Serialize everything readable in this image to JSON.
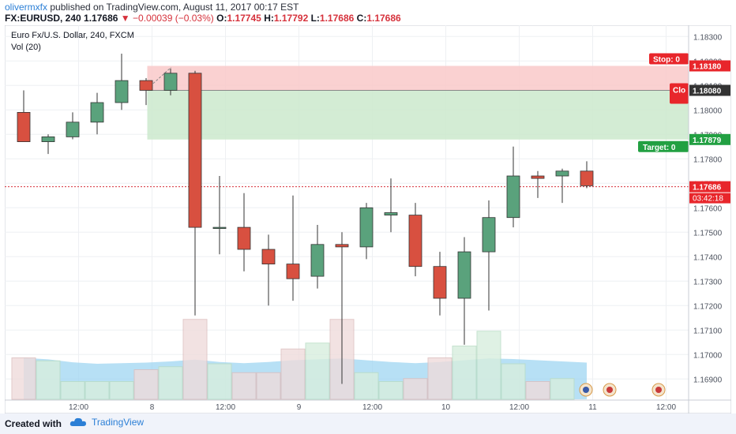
{
  "header": {
    "author": "olivermxfx",
    "published_text": " published on TradingView.com, August 11, 2017 00:17 EST",
    "symbol": "FX:EURUSD, 240",
    "last": "1.17686",
    "change": "−0.00039 (−0.03%)",
    "o_label": "O:",
    "o_val": "1.17745",
    "h_label": "H:",
    "h_val": "1.17792",
    "l_label": "L:",
    "l_val": "1.17686",
    "c_label": "C:",
    "c_val": "1.17686"
  },
  "footer": {
    "created_with": "Created with",
    "brand": "TradingView"
  },
  "colors": {
    "up": "#5aa27c",
    "down": "#d85040",
    "stop_zone": "#f9c9c9",
    "target_zone": "#cbe9cc",
    "volume_ma": "#9fd6f2",
    "price_line": "#d6323c",
    "target_label": "#22a042",
    "stop_label": "#e8262b"
  },
  "chart_data": {
    "type": "candlestick",
    "title": "Euro Fx/U.S. Dollar, 240, FXCM",
    "indicator_label": "Vol (20)",
    "ylim": [
      1.1683,
      1.1833
    ],
    "y_ticks": [
      "1.18300",
      "1.18200",
      "1.18100",
      "1.18000",
      "1.17900",
      "1.17800",
      "1.17700",
      "1.17600",
      "1.17500",
      "1.17400",
      "1.17300",
      "1.17200",
      "1.17100",
      "1.17000",
      "1.16900"
    ],
    "x_ticks": [
      {
        "label": "12:00",
        "at": 2.5
      },
      {
        "label": "8",
        "at": 5.5
      },
      {
        "label": "12:00",
        "at": 8.5
      },
      {
        "label": "9",
        "at": 11.5
      },
      {
        "label": "12:00",
        "at": 14.5
      },
      {
        "label": "10",
        "at": 17.5
      },
      {
        "label": "12:00",
        "at": 20.5
      },
      {
        "label": "11",
        "at": 23.5
      },
      {
        "label": "12:00",
        "at": 26.5
      }
    ],
    "candles": [
      {
        "o": 1.1799,
        "h": 1.1808,
        "l": 1.1787,
        "c": 1.1787
      },
      {
        "o": 1.1787,
        "h": 1.179,
        "l": 1.1782,
        "c": 1.1789
      },
      {
        "o": 1.1789,
        "h": 1.1799,
        "l": 1.1788,
        "c": 1.1795
      },
      {
        "o": 1.1795,
        "h": 1.1807,
        "l": 1.179,
        "c": 1.1803
      },
      {
        "o": 1.1803,
        "h": 1.1823,
        "l": 1.18,
        "c": 1.1812
      },
      {
        "o": 1.1812,
        "h": 1.1813,
        "l": 1.1802,
        "c": 1.1808
      },
      {
        "o": 1.1808,
        "h": 1.1817,
        "l": 1.1806,
        "c": 1.1815
      },
      {
        "o": 1.1815,
        "h": 1.1816,
        "l": 1.1716,
        "c": 1.1752
      },
      {
        "o": 1.1752,
        "h": 1.1773,
        "l": 1.1741,
        "c": 1.1752
      },
      {
        "o": 1.1752,
        "h": 1.1766,
        "l": 1.1734,
        "c": 1.1743
      },
      {
        "o": 1.1743,
        "h": 1.1749,
        "l": 1.172,
        "c": 1.1737
      },
      {
        "o": 1.1737,
        "h": 1.1765,
        "l": 1.1722,
        "c": 1.1731
      },
      {
        "o": 1.1732,
        "h": 1.1753,
        "l": 1.1727,
        "c": 1.1745
      },
      {
        "o": 1.1745,
        "h": 1.175,
        "l": 1.1688,
        "c": 1.1744
      },
      {
        "o": 1.1744,
        "h": 1.1762,
        "l": 1.1739,
        "c": 1.176
      },
      {
        "o": 1.1757,
        "h": 1.1772,
        "l": 1.175,
        "c": 1.1758
      },
      {
        "o": 1.1757,
        "h": 1.1762,
        "l": 1.1732,
        "c": 1.1736
      },
      {
        "o": 1.1736,
        "h": 1.1742,
        "l": 1.1716,
        "c": 1.1723
      },
      {
        "o": 1.1723,
        "h": 1.1748,
        "l": 1.1704,
        "c": 1.1742
      },
      {
        "o": 1.1742,
        "h": 1.1763,
        "l": 1.1718,
        "c": 1.1756
      },
      {
        "o": 1.1756,
        "h": 1.1785,
        "l": 1.1752,
        "c": 1.1773
      },
      {
        "o": 1.1773,
        "h": 1.1775,
        "l": 1.1764,
        "c": 1.1772
      },
      {
        "o": 1.1773,
        "h": 1.1776,
        "l": 1.1762,
        "c": 1.1775
      },
      {
        "o": 1.1775,
        "h": 1.1779,
        "l": 1.1768,
        "c": 1.1769
      }
    ],
    "volume": [
      14,
      13,
      6,
      6,
      6,
      10,
      11,
      27,
      12,
      9,
      9,
      17,
      19,
      27,
      9,
      6,
      7,
      14,
      18,
      23,
      12,
      6,
      7,
      0
    ],
    "volume_ma": [
      14,
      13.5,
      12.5,
      12,
      12.2,
      12.4,
      12.8,
      13.4,
      12.6,
      12.2,
      12.6,
      13.2,
      13.5,
      13.8,
      13.2,
      12.6,
      12.2,
      12.6,
      13.2,
      13.8,
      13.6,
      13.2,
      12.8,
      12.4
    ],
    "position": {
      "stop_top": 1.1818,
      "entry": 1.1808,
      "target": 1.17879,
      "start_candle": 5.5,
      "stop_label": "Stop: 0",
      "close_label": "Clo",
      "target_label": "Target: 0"
    },
    "price_tags": [
      {
        "value": 1.1818,
        "text": "1.18180",
        "color": "#e8262b"
      },
      {
        "value": 1.1808,
        "text": "1.18080",
        "color": "#333333"
      },
      {
        "value": 1.17879,
        "text": "1.17879",
        "color": "#22a042"
      },
      {
        "value": 1.17686,
        "text": "1.17686",
        "color": "#e8262b"
      }
    ],
    "countdown": "03:42:18"
  }
}
